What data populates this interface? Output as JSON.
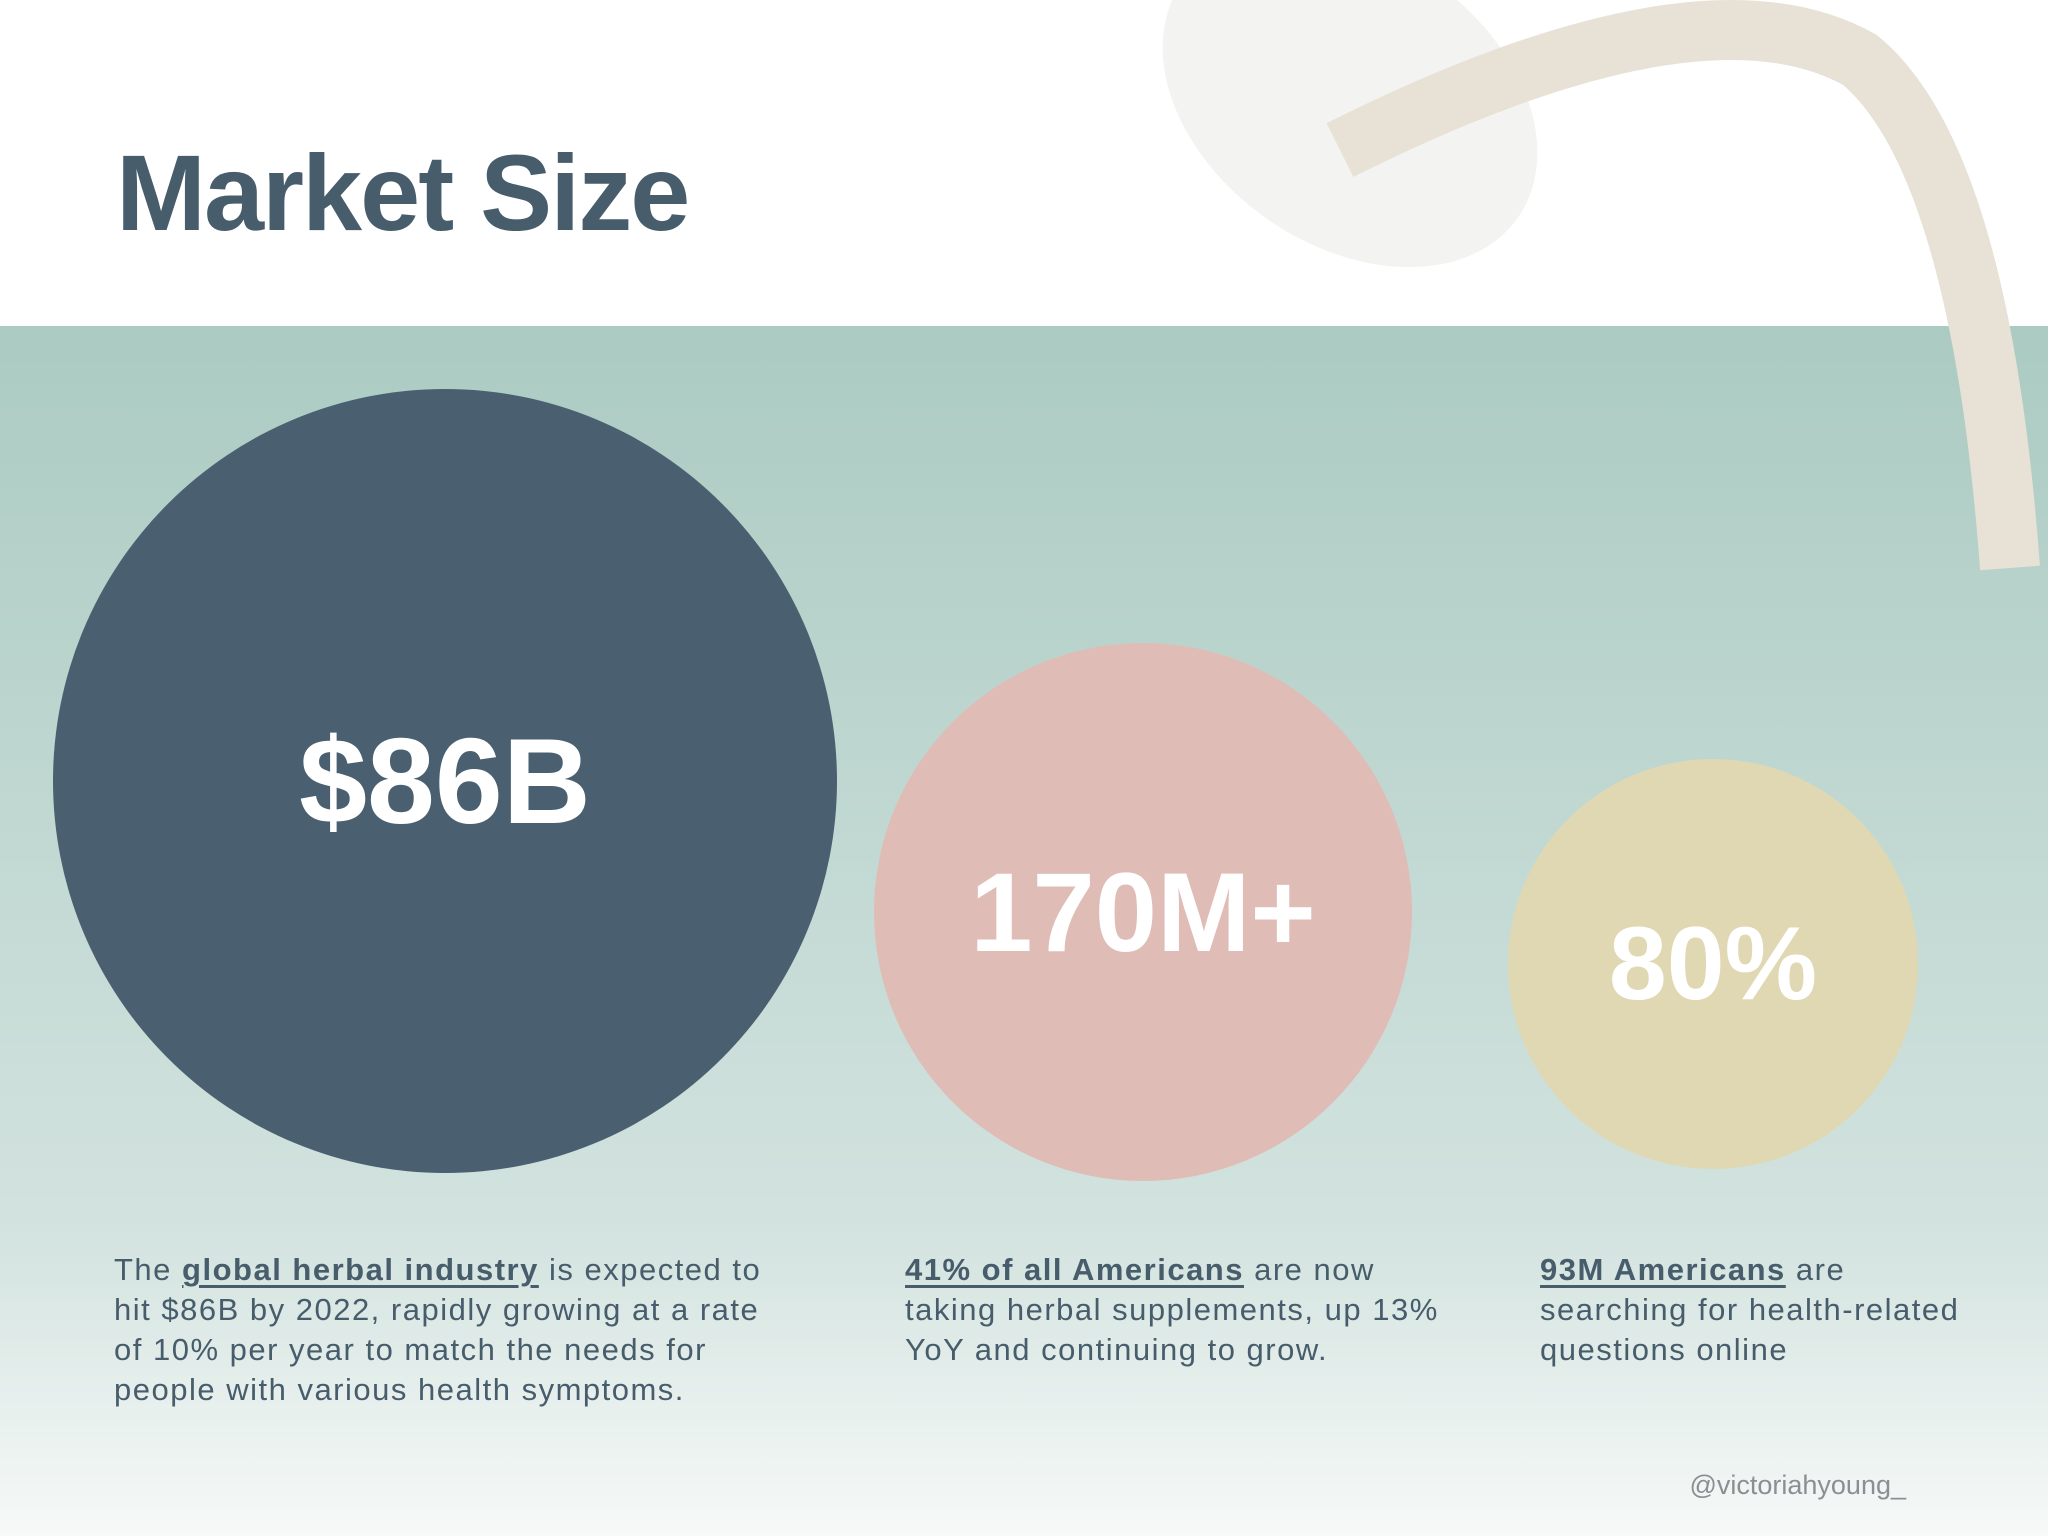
{
  "title": "Market Size",
  "stats": [
    {
      "value": "$86B",
      "description": [
        {
          "text": "The "
        },
        {
          "text": "global herbal industry",
          "emphasis": true
        },
        {
          "text": " is expected to hit $86B by 2022, rapidly growing at a rate of 10% per year to match the needs for people with various health symptoms."
        }
      ]
    },
    {
      "value": "170M+",
      "description": [
        {
          "text": "41% of all Americans",
          "emphasis": true
        },
        {
          "text": " are now taking herbal supplements, up 13% YoY and continuing to grow."
        }
      ]
    },
    {
      "value": "80%",
      "description": [
        {
          "text": "93M Americans",
          "emphasis": true
        },
        {
          "text": " are searching for health-related questions online"
        }
      ]
    }
  ],
  "credit": "@victoriahyoung_"
}
